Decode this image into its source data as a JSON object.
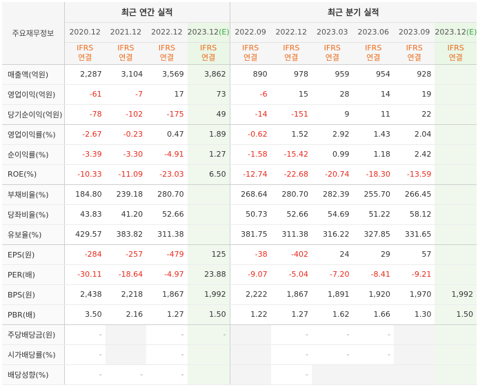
{
  "header": {
    "corner_label": "주요재무정보",
    "annual_label": "최근 연간 실적",
    "quarterly_label": "최근 분기 실적",
    "periods": [
      {
        "label": "2020.12",
        "est": ""
      },
      {
        "label": "2021.12",
        "est": ""
      },
      {
        "label": "2022.12",
        "est": ""
      },
      {
        "label": "2023.12",
        "est": "(E)"
      },
      {
        "label": "2022.09",
        "est": ""
      },
      {
        "label": "2022.12",
        "est": ""
      },
      {
        "label": "2023.03",
        "est": ""
      },
      {
        "label": "2023.06",
        "est": ""
      },
      {
        "label": "2023.09",
        "est": ""
      },
      {
        "label": "2023.12",
        "est": "(E)"
      }
    ],
    "ifrs_line1": "IFRS",
    "ifrs_line2": "연결"
  },
  "rows": [
    {
      "label": "매출액(억원)",
      "values": [
        "2,287",
        "3,104",
        "3,569",
        "3,862",
        "890",
        "978",
        "959",
        "954",
        "928",
        ""
      ]
    },
    {
      "label": "영업이익(억원)",
      "values": [
        "-61",
        "-7",
        "17",
        "73",
        "-6",
        "15",
        "28",
        "14",
        "19",
        ""
      ]
    },
    {
      "label": "당기순이익(억원)",
      "values": [
        "-78",
        "-102",
        "-175",
        "49",
        "-14",
        "-151",
        "9",
        "11",
        "22",
        ""
      ]
    },
    {
      "label": "영업이익률(%)",
      "values": [
        "-2.67",
        "-0.23",
        "0.47",
        "1.89",
        "-0.62",
        "1.52",
        "2.92",
        "1.43",
        "2.04",
        ""
      ]
    },
    {
      "label": "순이익률(%)",
      "values": [
        "-3.39",
        "-3.30",
        "-4.91",
        "1.27",
        "-1.58",
        "-15.42",
        "0.99",
        "1.18",
        "2.42",
        ""
      ]
    },
    {
      "label": "ROE(%)",
      "values": [
        "-10.33",
        "-11.09",
        "-23.03",
        "6.50",
        "-12.74",
        "-22.68",
        "-20.74",
        "-18.30",
        "-13.59",
        ""
      ]
    },
    {
      "label": "부채비율(%)",
      "values": [
        "184.80",
        "239.18",
        "280.70",
        "",
        "268.64",
        "280.70",
        "282.39",
        "255.70",
        "266.45",
        ""
      ]
    },
    {
      "label": "당좌비율(%)",
      "values": [
        "43.83",
        "41.20",
        "52.66",
        "",
        "50.73",
        "52.66",
        "54.69",
        "51.22",
        "58.12",
        ""
      ]
    },
    {
      "label": "유보율(%)",
      "values": [
        "429.57",
        "383.82",
        "311.38",
        "",
        "381.75",
        "311.38",
        "316.22",
        "327.85",
        "331.65",
        ""
      ]
    },
    {
      "label": "EPS(원)",
      "values": [
        "-284",
        "-257",
        "-479",
        "125",
        "-38",
        "-402",
        "24",
        "29",
        "57",
        ""
      ]
    },
    {
      "label": "PER(배)",
      "values": [
        "-30.11",
        "-18.64",
        "-4.97",
        "23.88",
        "-9.07",
        "-5.04",
        "-7.20",
        "-8.41",
        "-9.21",
        ""
      ]
    },
    {
      "label": "BPS(원)",
      "values": [
        "2,438",
        "2,218",
        "1,867",
        "1,992",
        "2,222",
        "1,867",
        "1,891",
        "1,920",
        "1,970",
        "1,992"
      ]
    },
    {
      "label": "PBR(배)",
      "values": [
        "3.50",
        "2.16",
        "1.27",
        "1.50",
        "1.22",
        "1.27",
        "1.62",
        "1.66",
        "1.30",
        "1.50"
      ]
    },
    {
      "label": "주당배당금(원)",
      "values": [
        "-",
        "",
        "-",
        "-",
        "",
        "-",
        "-",
        "-",
        "",
        ""
      ]
    },
    {
      "label": "시가배당률(%)",
      "values": [
        "-",
        "",
        "-",
        "",
        "",
        "-",
        "-",
        "-",
        "",
        ""
      ]
    },
    {
      "label": "배당성향(%)",
      "values": [
        "-",
        "-",
        "-",
        "",
        "",
        "-",
        "",
        "",
        "",
        ""
      ]
    }
  ],
  "colors": {
    "negative": "#e8291c",
    "ifrs": "#ec6c1b",
    "estimate": "#39a543",
    "estimate_bg": "#f0f8ee"
  }
}
